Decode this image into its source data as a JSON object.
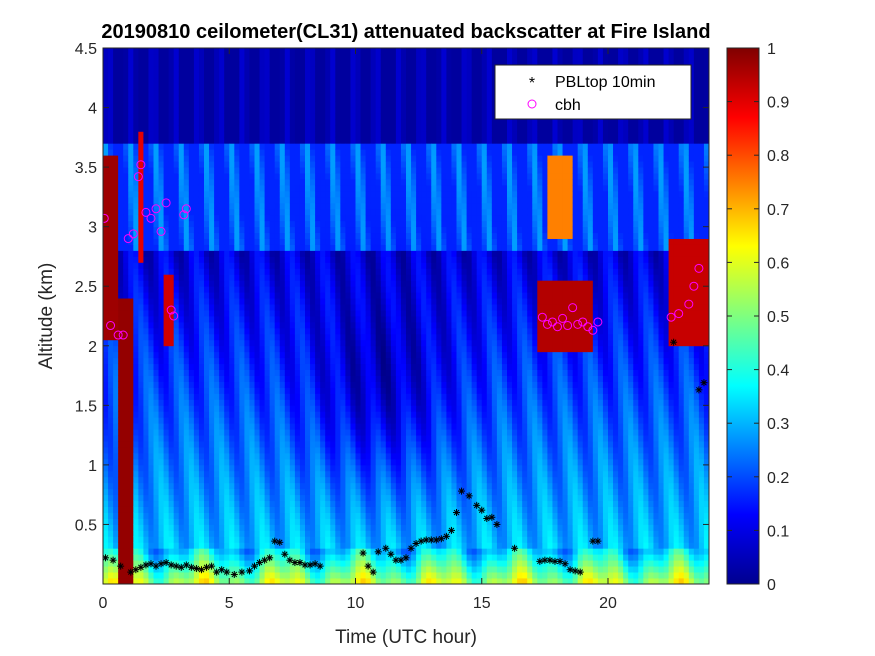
{
  "chart_data": {
    "type": "heatmap",
    "title": "20190810 ceilometer(CL31) attenuated backscatter at Fire Island",
    "xlabel": "Time (UTC hour)",
    "ylabel": "Altitude (km)",
    "xlim": [
      0,
      24
    ],
    "ylim": [
      0,
      4.5
    ],
    "xticks": [
      "0",
      "5",
      "10",
      "15",
      "20"
    ],
    "yticks": [
      "0.5",
      "1",
      "1.5",
      "2",
      "2.5",
      "3",
      "3.5",
      "4",
      "4.5"
    ],
    "colorbar": {
      "range": [
        0,
        1
      ],
      "ticks": [
        "0",
        "0.1",
        "0.2",
        "0.3",
        "0.4",
        "0.5",
        "0.6",
        "0.7",
        "0.8",
        "0.9",
        "1"
      ],
      "colormap": "jet"
    },
    "legend": {
      "placement": "top-right",
      "entries": [
        {
          "label": "PBLtop 10min",
          "marker": "asterisk",
          "color": "#000000"
        },
        {
          "label": "cbh",
          "marker": "circle",
          "color": "#ff00ff"
        }
      ]
    },
    "series": [
      {
        "name": "PBLtop 10min",
        "x": [
          0.1,
          0.4,
          0.7,
          1.1,
          1.3,
          1.5,
          1.7,
          1.9,
          2.1,
          2.3,
          2.5,
          2.7,
          2.9,
          3.1,
          3.3,
          3.5,
          3.7,
          3.9,
          4.1,
          4.3,
          4.5,
          4.7,
          4.9,
          5.2,
          5.5,
          5.8,
          6.0,
          6.2,
          6.4,
          6.6,
          6.8,
          7.0,
          7.2,
          7.4,
          7.6,
          7.8,
          8.0,
          8.2,
          8.4,
          8.6,
          10.3,
          10.5,
          10.7,
          10.9,
          11.2,
          11.4,
          11.6,
          11.8,
          12.0,
          12.2,
          12.4,
          12.6,
          12.8,
          13.0,
          13.2,
          13.4,
          13.6,
          13.8,
          14.0,
          14.2,
          14.5,
          14.8,
          15.0,
          15.2,
          15.4,
          15.6,
          16.3,
          17.3,
          17.5,
          17.7,
          17.9,
          18.1,
          18.3,
          18.5,
          18.7,
          18.9,
          19.4,
          19.6,
          22.6,
          23.6,
          23.8
        ],
        "y": [
          0.22,
          0.2,
          0.15,
          0.1,
          0.12,
          0.14,
          0.16,
          0.17,
          0.15,
          0.17,
          0.18,
          0.16,
          0.15,
          0.14,
          0.16,
          0.14,
          0.13,
          0.12,
          0.14,
          0.15,
          0.1,
          0.12,
          0.1,
          0.08,
          0.1,
          0.11,
          0.15,
          0.18,
          0.2,
          0.22,
          0.36,
          0.35,
          0.25,
          0.2,
          0.18,
          0.18,
          0.16,
          0.16,
          0.17,
          0.15,
          0.26,
          0.15,
          0.1,
          0.27,
          0.3,
          0.25,
          0.2,
          0.2,
          0.22,
          0.3,
          0.34,
          0.36,
          0.37,
          0.37,
          0.37,
          0.38,
          0.4,
          0.45,
          0.6,
          0.78,
          0.74,
          0.66,
          0.62,
          0.55,
          0.56,
          0.5,
          0.3,
          0.19,
          0.2,
          0.2,
          0.19,
          0.19,
          0.17,
          0.12,
          0.11,
          0.1,
          0.36,
          0.36,
          2.03,
          1.63,
          1.69
        ]
      },
      {
        "name": "cbh",
        "x": [
          0.05,
          0.3,
          0.6,
          0.8,
          1.0,
          1.2,
          1.4,
          1.5,
          1.7,
          1.9,
          2.1,
          2.3,
          2.5,
          2.7,
          2.8,
          3.2,
          3.3,
          17.4,
          17.6,
          17.8,
          18.0,
          18.2,
          18.4,
          18.6,
          18.8,
          19.0,
          19.2,
          19.4,
          19.6,
          22.5,
          22.8,
          23.2,
          23.4,
          23.6
        ],
        "y": [
          3.07,
          2.17,
          2.09,
          2.09,
          2.9,
          2.94,
          3.42,
          3.52,
          3.12,
          3.07,
          3.15,
          2.96,
          3.2,
          2.3,
          2.25,
          3.1,
          3.15,
          2.24,
          2.18,
          2.2,
          2.16,
          2.23,
          2.17,
          2.32,
          2.18,
          2.2,
          2.16,
          2.13,
          2.2,
          2.24,
          2.27,
          2.35,
          2.5,
          2.65
        ]
      }
    ]
  }
}
